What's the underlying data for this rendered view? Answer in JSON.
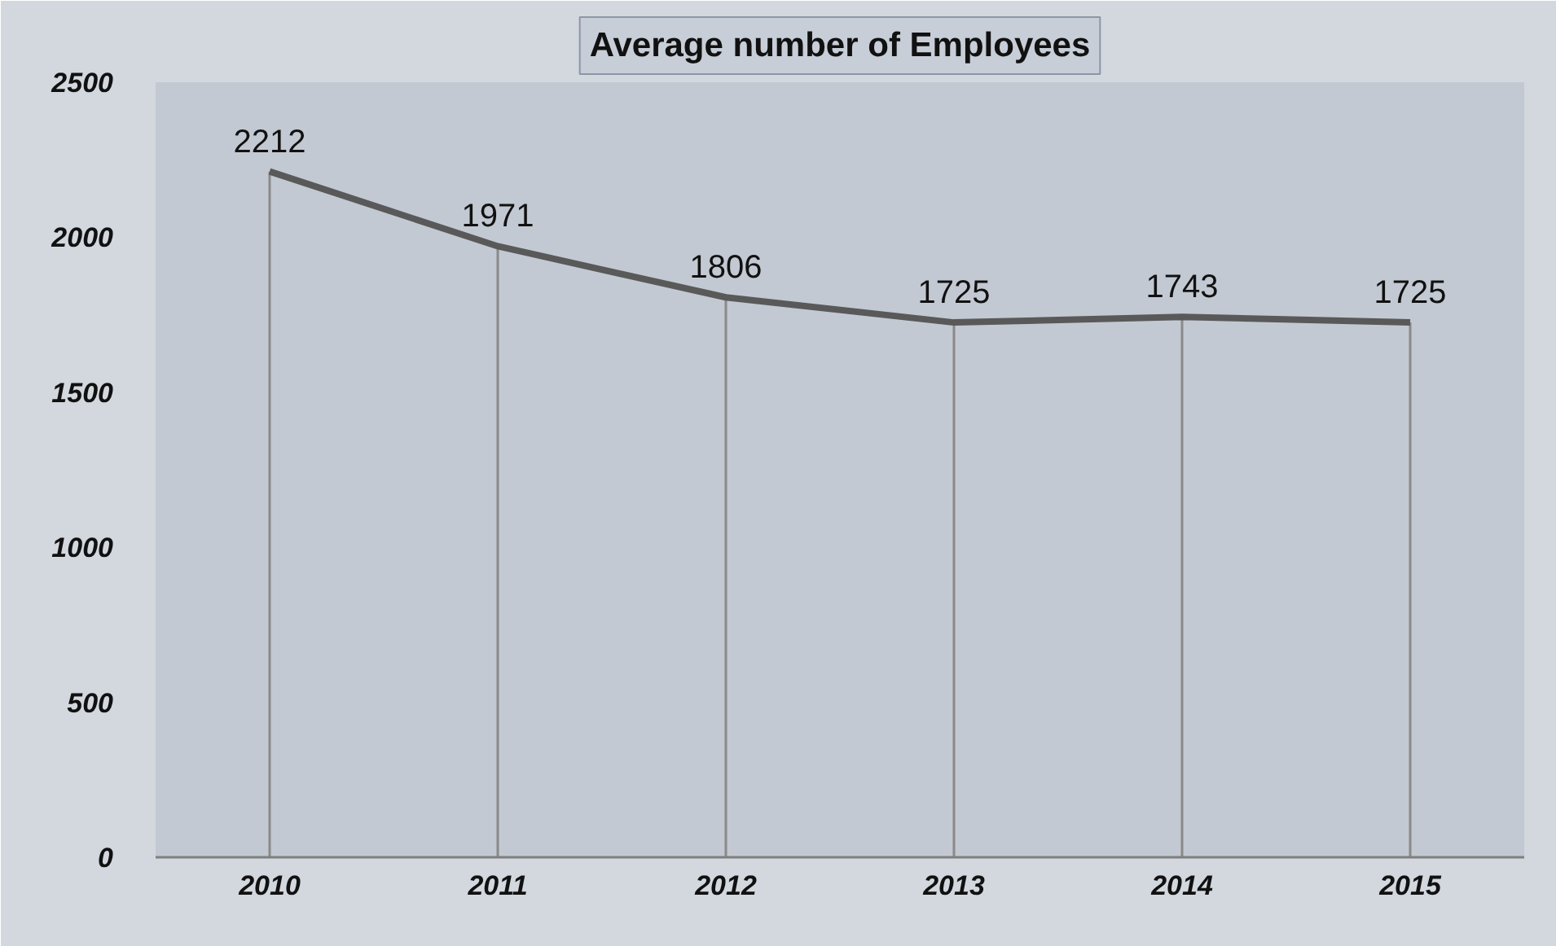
{
  "chart_data": {
    "type": "line",
    "title": "Average number of Employees",
    "categories": [
      "2010",
      "2011",
      "2012",
      "2013",
      "2014",
      "2015"
    ],
    "series": [
      {
        "color": "#595959",
        "values": [
          2212,
          1971,
          1806,
          1725,
          1743,
          1725
        ]
      }
    ],
    "ylim": [
      0,
      2500
    ],
    "yticks": [
      0,
      500,
      1000,
      1500,
      2000,
      2500
    ],
    "data_labels": true,
    "grid": "x",
    "marker": "none",
    "line_style": "solid"
  }
}
